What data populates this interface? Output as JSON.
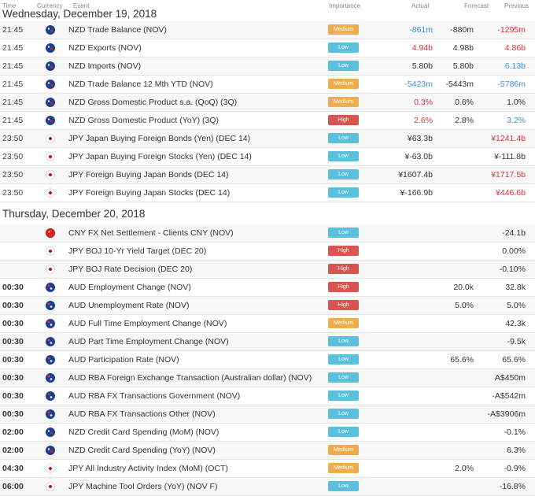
{
  "header": {
    "time": "Time",
    "currency": "Currency",
    "event": "Event",
    "importance": "Importance",
    "actual": "Actual",
    "forecast": "Forecast",
    "previous": "Previous"
  },
  "colors": {
    "low": "#5bc0de",
    "medium": "#f0ad4e",
    "high": "#d9534f",
    "up": "#3a8fd8",
    "down": "#e0303c"
  },
  "days": [
    {
      "label": "Wednesday, December 19, 2018",
      "rows": [
        {
          "time": "21:45",
          "flag": "nz",
          "event": "NZD Trade Balance (NOV)",
          "importance": "Medium",
          "actual": "-861m",
          "actual_tone": "up",
          "forecast": "-880m",
          "previous": "-1295m",
          "previous_tone": "down"
        },
        {
          "time": "21:45",
          "flag": "nz",
          "event": "NZD Exports (NOV)",
          "importance": "Low",
          "actual": "4.94b",
          "actual_tone": "down",
          "forecast": "4.98b",
          "previous": "4.86b",
          "previous_tone": "down"
        },
        {
          "time": "21:45",
          "flag": "nz",
          "event": "NZD Imports (NOV)",
          "importance": "Low",
          "actual": "5.80b",
          "actual_tone": "neutral",
          "forecast": "5.80b",
          "previous": "6.13b",
          "previous_tone": "up"
        },
        {
          "time": "21:45",
          "flag": "nz",
          "event": "NZD Trade Balance 12 Mth YTD (NOV)",
          "importance": "Medium",
          "actual": "-5423m",
          "actual_tone": "up",
          "forecast": "-5443m",
          "previous": "-5786m",
          "previous_tone": "up"
        },
        {
          "time": "21:45",
          "flag": "nz",
          "event": "NZD Gross Domestic Product s.a. (QoQ) (3Q)",
          "importance": "Medium",
          "actual": "0.3%",
          "actual_tone": "down",
          "forecast": "0.6%",
          "previous": "1.0%",
          "previous_tone": "neutral"
        },
        {
          "time": "21:45",
          "flag": "nz",
          "event": "NZD Gross Domestic Product (YoY) (3Q)",
          "importance": "High",
          "actual": "2.6%",
          "actual_tone": "down",
          "forecast": "2.8%",
          "previous": "3.2%",
          "previous_tone": "up"
        },
        {
          "time": "23:50",
          "flag": "jp",
          "event": "JPY Japan Buying Foreign Bonds (Yen) (DEC 14)",
          "importance": "Low",
          "actual": "¥63.3b",
          "actual_tone": "neutral",
          "forecast": "",
          "previous": "¥1241.4b",
          "previous_tone": "down"
        },
        {
          "time": "23:50",
          "flag": "jp",
          "event": "JPY Japan Buying Foreign Stocks (Yen) (DEC 14)",
          "importance": "Low",
          "actual": "¥-63.0b",
          "actual_tone": "neutral",
          "forecast": "",
          "previous": "¥-111.8b",
          "previous_tone": "neutral"
        },
        {
          "time": "23:50",
          "flag": "jp",
          "event": "JPY Foreign Buying Japan Bonds (DEC 14)",
          "importance": "Low",
          "actual": "¥1607.4b",
          "actual_tone": "neutral",
          "forecast": "",
          "previous": "¥1717.5b",
          "previous_tone": "down"
        },
        {
          "time": "23:50",
          "flag": "jp",
          "event": "JPY Foreign Buying Japan Stocks (DEC 14)",
          "importance": "Low",
          "actual": "¥-166.9b",
          "actual_tone": "neutral",
          "forecast": "",
          "previous": "¥446.6b",
          "previous_tone": "down"
        }
      ]
    },
    {
      "label": "Thursday, December 20, 2018",
      "rows": [
        {
          "time": "",
          "flag": "cn",
          "event": "CNY FX Net Settlement - Clients CNY (NOV)",
          "importance": "Low",
          "actual": "",
          "actual_tone": "neutral",
          "forecast": "",
          "previous": "-24.1b",
          "previous_tone": "neutral"
        },
        {
          "time": "",
          "flag": "jp",
          "event": "JPY BOJ 10-Yr Yield Target (DEC 20)",
          "importance": "High",
          "actual": "",
          "actual_tone": "neutral",
          "forecast": "",
          "previous": "0.00%",
          "previous_tone": "neutral"
        },
        {
          "time": "",
          "flag": "jp",
          "event": "JPY BOJ Rate Decision (DEC 20)",
          "importance": "High",
          "actual": "",
          "actual_tone": "neutral",
          "forecast": "",
          "previous": "-0.10%",
          "previous_tone": "neutral"
        },
        {
          "time": "00:30",
          "flag": "au",
          "event": "AUD Employment Change (NOV)",
          "importance": "High",
          "actual": "",
          "actual_tone": "neutral",
          "forecast": "20.0k",
          "previous": "32.8k",
          "previous_tone": "neutral"
        },
        {
          "time": "00:30",
          "flag": "au",
          "event": "AUD Unemployment Rate (NOV)",
          "importance": "High",
          "actual": "",
          "actual_tone": "neutral",
          "forecast": "5.0%",
          "previous": "5.0%",
          "previous_tone": "neutral"
        },
        {
          "time": "00:30",
          "flag": "au",
          "event": "AUD Full Time Employment Change (NOV)",
          "importance": "Medium",
          "actual": "",
          "actual_tone": "neutral",
          "forecast": "",
          "previous": "42.3k",
          "previous_tone": "neutral"
        },
        {
          "time": "00:30",
          "flag": "au",
          "event": "AUD Part Time Employment Change (NOV)",
          "importance": "Low",
          "actual": "",
          "actual_tone": "neutral",
          "forecast": "",
          "previous": "-9.5k",
          "previous_tone": "neutral"
        },
        {
          "time": "00:30",
          "flag": "au",
          "event": "AUD Participation Rate (NOV)",
          "importance": "Low",
          "actual": "",
          "actual_tone": "neutral",
          "forecast": "65.6%",
          "previous": "65.6%",
          "previous_tone": "neutral"
        },
        {
          "time": "00:30",
          "flag": "au",
          "event": "AUD RBA Foreign Exchange Transaction (Australian dollar) (NOV)",
          "importance": "Low",
          "actual": "",
          "actual_tone": "neutral",
          "forecast": "",
          "previous": "A$450m",
          "previous_tone": "neutral"
        },
        {
          "time": "00:30",
          "flag": "au",
          "event": "AUD RBA FX Transactions Government (NOV)",
          "importance": "Low",
          "actual": "",
          "actual_tone": "neutral",
          "forecast": "",
          "previous": "-A$542m",
          "previous_tone": "neutral"
        },
        {
          "time": "00:30",
          "flag": "au",
          "event": "AUD RBA FX Transactions Other (NOV)",
          "importance": "Low",
          "actual": "",
          "actual_tone": "neutral",
          "forecast": "",
          "previous": "-A$3906m",
          "previous_tone": "neutral"
        },
        {
          "time": "02:00",
          "flag": "nz",
          "event": "NZD Credit Card Spending (MoM) (NOV)",
          "importance": "Low",
          "actual": "",
          "actual_tone": "neutral",
          "forecast": "",
          "previous": "-0.1%",
          "previous_tone": "neutral"
        },
        {
          "time": "02:00",
          "flag": "nz",
          "event": "NZD Credit Card Spending (YoY) (NOV)",
          "importance": "Medium",
          "actual": "",
          "actual_tone": "neutral",
          "forecast": "",
          "previous": "6.3%",
          "previous_tone": "neutral"
        },
        {
          "time": "04:30",
          "flag": "jp",
          "event": "JPY All Industry Activity Index (MoM) (OCT)",
          "importance": "Medium",
          "actual": "",
          "actual_tone": "neutral",
          "forecast": "2.0%",
          "previous": "-0.9%",
          "previous_tone": "neutral"
        },
        {
          "time": "06:00",
          "flag": "jp",
          "event": "JPY Machine Tool Orders (YoY) (NOV F)",
          "importance": "Low",
          "actual": "",
          "actual_tone": "neutral",
          "forecast": "",
          "previous": "-16.8%",
          "previous_tone": "neutral"
        }
      ]
    }
  ]
}
